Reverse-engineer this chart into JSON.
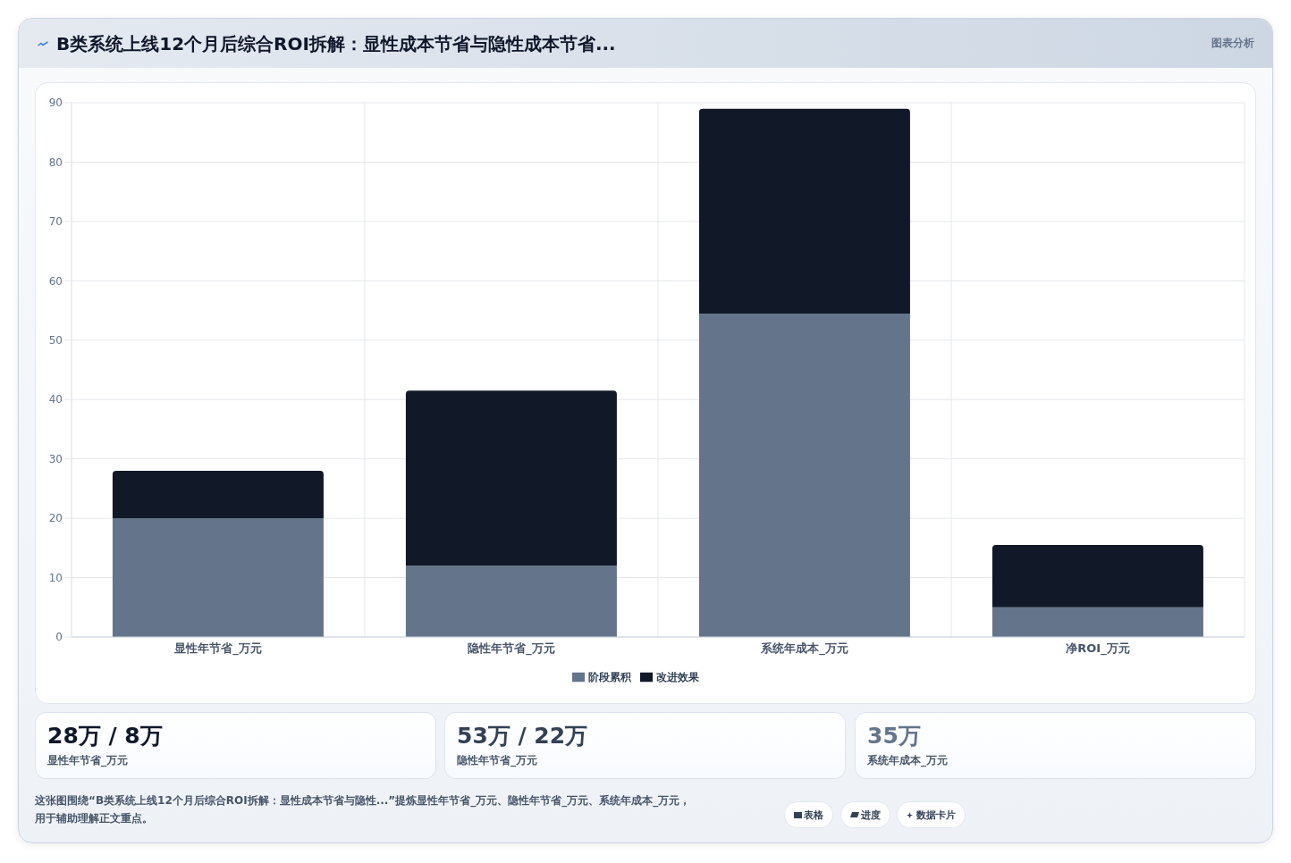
{
  "chart_data": {
    "type": "bar",
    "title": "B类系统上线12个月后综合ROI拆解：显性成本节省与隐性成本节省...",
    "categories": [
      "显性年节省_万元",
      "隐性年节省_万元",
      "系统年成本_万元",
      "净ROI_万元"
    ],
    "series": [
      {
        "name": "阶段累积",
        "color": "#64748b",
        "values": [
          20,
          12,
          54.5,
          5
        ]
      },
      {
        "name": "改进效果",
        "color": "#111827",
        "values": [
          8,
          29.5,
          34.5,
          10.5
        ]
      }
    ],
    "stacked": true,
    "ylim": [
      0,
      90
    ],
    "yticks": [
      0,
      10,
      20,
      30,
      40,
      50,
      60,
      70,
      80,
      90
    ],
    "grid": true,
    "legend": "bottom",
    "annotations": [
      "图表分析",
      "28万 / 8万",
      "显性年节省_万元",
      "53万 / 22万",
      "隐性年节省_万元",
      "35万",
      "系统年成本_万元",
      "这张图围绕“B类系统上线12个月后综合ROI拆解：显性成本节省与隐性...”提炼显性年节省_万元、隐性年节省_万元、系统年成本_万元，用于辅助理解正文重点。",
      "表格",
      "进度",
      "数据卡片"
    ]
  }
}
